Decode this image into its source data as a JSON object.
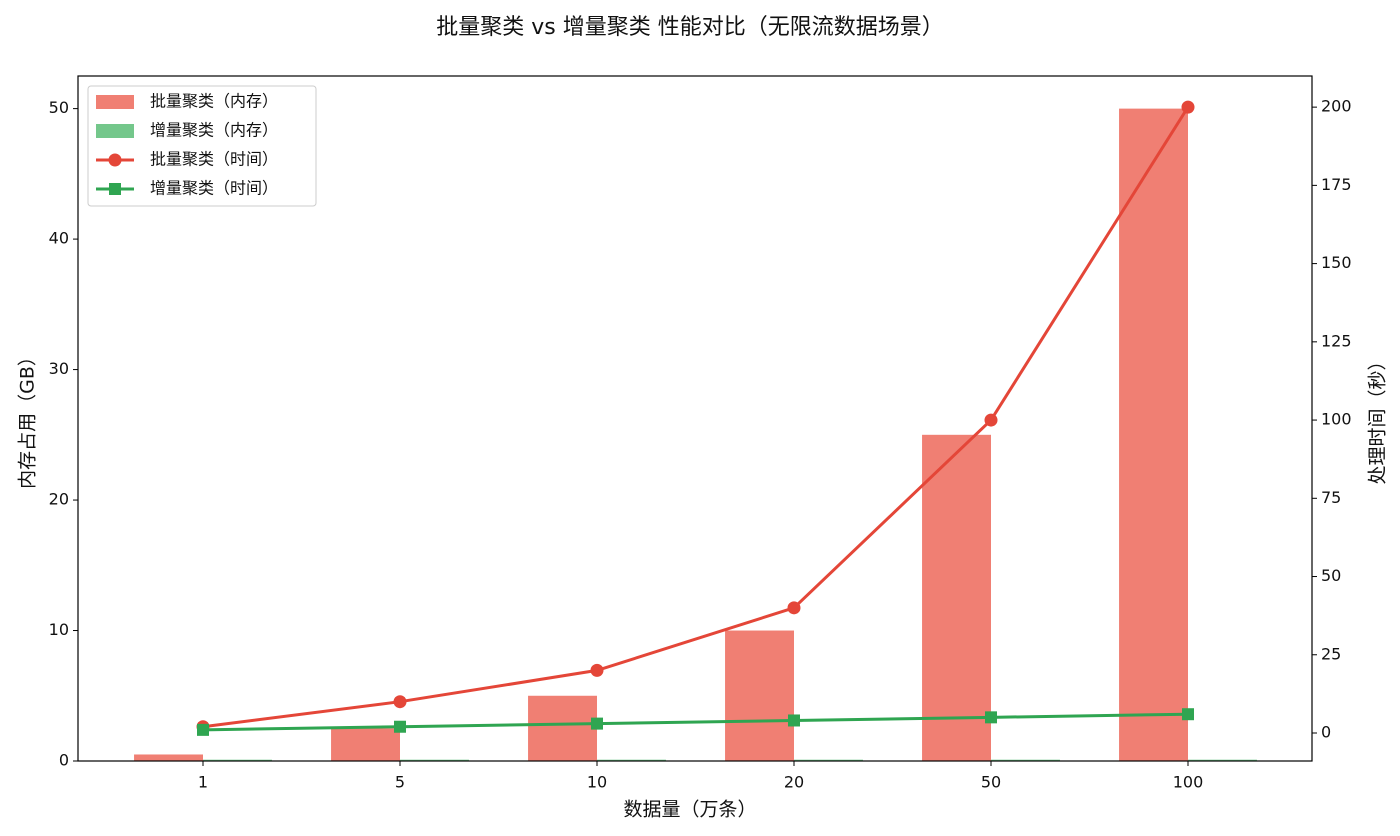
{
  "chart_data": {
    "type": "bar-line",
    "title": "批量聚类 vs 增量聚类 性能对比（无限流数据场景）",
    "x_label": "数据量（万条）",
    "y_label": "内存占用（GB）",
    "y2_label": "处理时间（秒）",
    "categories": [
      "1",
      "5",
      "10",
      "20",
      "50",
      "100"
    ],
    "series": [
      {
        "name": "批量聚类（内存）",
        "kind": "bar",
        "color": "#f07f73",
        "values": [
          0.5,
          2.5,
          5,
          10,
          25,
          50
        ]
      },
      {
        "name": "增量聚类（内存）",
        "kind": "bar",
        "color": "#74c78b",
        "values": [
          0.1,
          0.1,
          0.1,
          0.1,
          0.1,
          0.1
        ]
      },
      {
        "name": "批量聚类（时间）",
        "kind": "line",
        "marker": "circle",
        "axis": "y2",
        "color": "#e44638",
        "values": [
          2,
          10,
          20,
          40,
          100,
          200
        ]
      },
      {
        "name": "增量聚类（时间）",
        "kind": "line",
        "marker": "square",
        "axis": "y2",
        "color": "#2fa551",
        "values": [
          1,
          2,
          3,
          4,
          5,
          6
        ]
      }
    ],
    "ylim": [
      0,
      52.5
    ],
    "yticks": [
      0,
      10,
      20,
      30,
      40,
      50
    ],
    "y2lim": [
      -8.95,
      209.95
    ],
    "y2ticks": [
      0,
      25,
      50,
      75,
      100,
      125,
      150,
      175,
      200
    ],
    "grid": false,
    "legend": "upper left"
  }
}
